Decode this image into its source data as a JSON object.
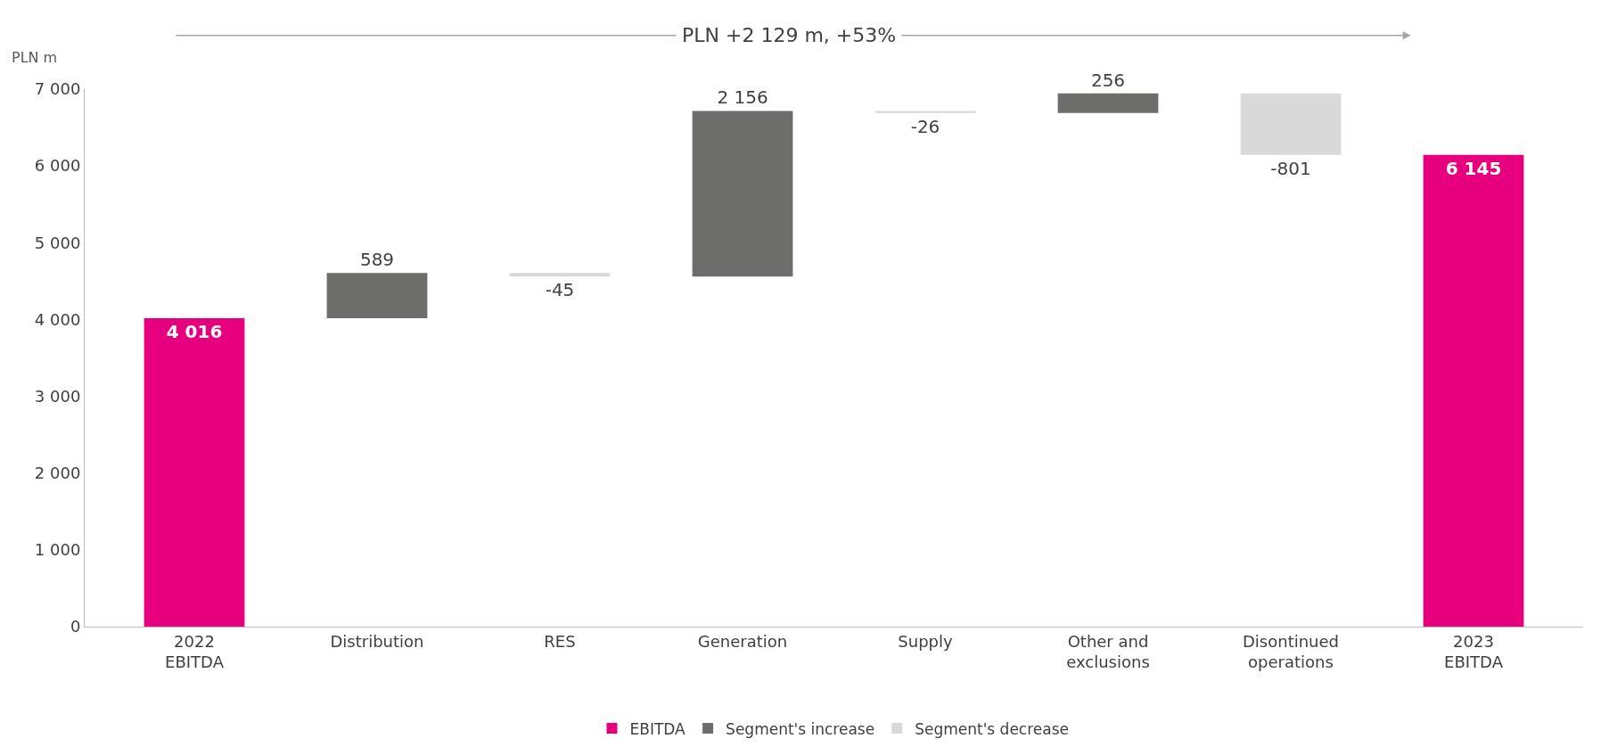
{
  "chart_data": {
    "type": "bar",
    "ylabel": "PLN m",
    "annotations": [
      "PLN +2 129 m, +53%"
    ],
    "categories": [
      "2022\nEBITDA",
      "Distribution",
      "RES",
      "Generation",
      "Supply",
      "Other and\nexclusions",
      "Disontinued\noperations",
      "2023\nEBITDA"
    ],
    "series": [
      {
        "name": "EBITDA",
        "color": "#e6007e",
        "values": [
          4016,
          null,
          null,
          null,
          null,
          null,
          null,
          6145
        ],
        "base": [
          0,
          null,
          null,
          null,
          null,
          null,
          null,
          0
        ],
        "value_labels": [
          "4 016",
          null,
          null,
          null,
          null,
          null,
          null,
          "6 145"
        ]
      },
      {
        "name": "Segment's increase",
        "color": "#6d6d6b",
        "values": [
          null,
          589,
          null,
          2156,
          null,
          256,
          null,
          null
        ],
        "base": [
          null,
          4016,
          null,
          4560,
          null,
          6690,
          null,
          null
        ],
        "value_labels": [
          null,
          "589",
          null,
          "2 156",
          null,
          "256",
          null,
          null
        ]
      },
      {
        "name": "Segment's decrease",
        "color": "#d9d9d9",
        "values": [
          null,
          null,
          -45,
          null,
          -26,
          null,
          -801,
          null
        ],
        "base": [
          null,
          null,
          4605,
          null,
          6716,
          null,
          6946,
          null
        ],
        "value_labels": [
          null,
          null,
          "-45",
          null,
          "-26",
          null,
          "-801",
          null
        ]
      }
    ],
    "ylim": [
      0,
      7000
    ],
    "yticks": [
      0,
      {
        "value": 1000,
        "label": "1 000"
      },
      {
        "value": 2000,
        "label": "2 000"
      },
      {
        "value": 3000,
        "label": "3 000"
      },
      {
        "value": 4000,
        "label": "4 000"
      },
      {
        "value": 5000,
        "label": "5 000"
      },
      {
        "value": 6000,
        "label": "6 000"
      },
      {
        "value": 7000,
        "label": "7 000"
      }
    ],
    "legend": "bottom"
  }
}
